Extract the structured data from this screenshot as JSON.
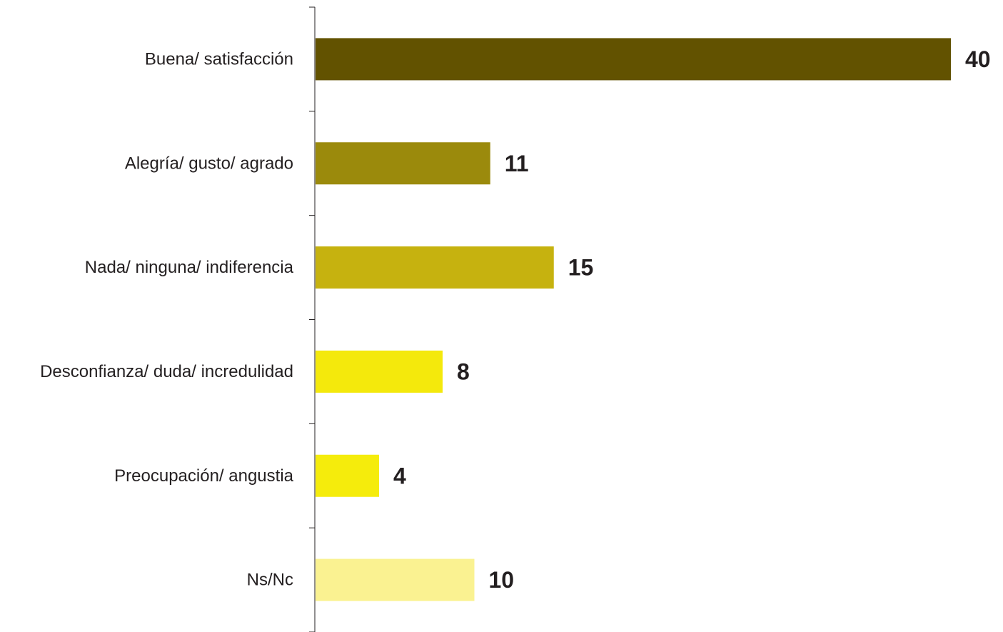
{
  "chart_data": {
    "type": "bar",
    "orientation": "horizontal",
    "categories": [
      "Buena/ satisfacción",
      "Alegría/ gusto/ agrado",
      "Nada/ ninguna/ indiferencia",
      "Desconfianza/ duda/ incredulidad",
      "Preocupación/ angustia",
      "Ns/Nc"
    ],
    "values": [
      40,
      11,
      15,
      8,
      4,
      10
    ],
    "colors": [
      "#625200",
      "#9b8a0c",
      "#c6b20f",
      "#f4e90c",
      "#f5ec0c",
      "#faf291"
    ],
    "title": "",
    "xlabel": "",
    "ylabel": "",
    "xlim": [
      0,
      40
    ],
    "grid": false,
    "data_labels": true
  }
}
